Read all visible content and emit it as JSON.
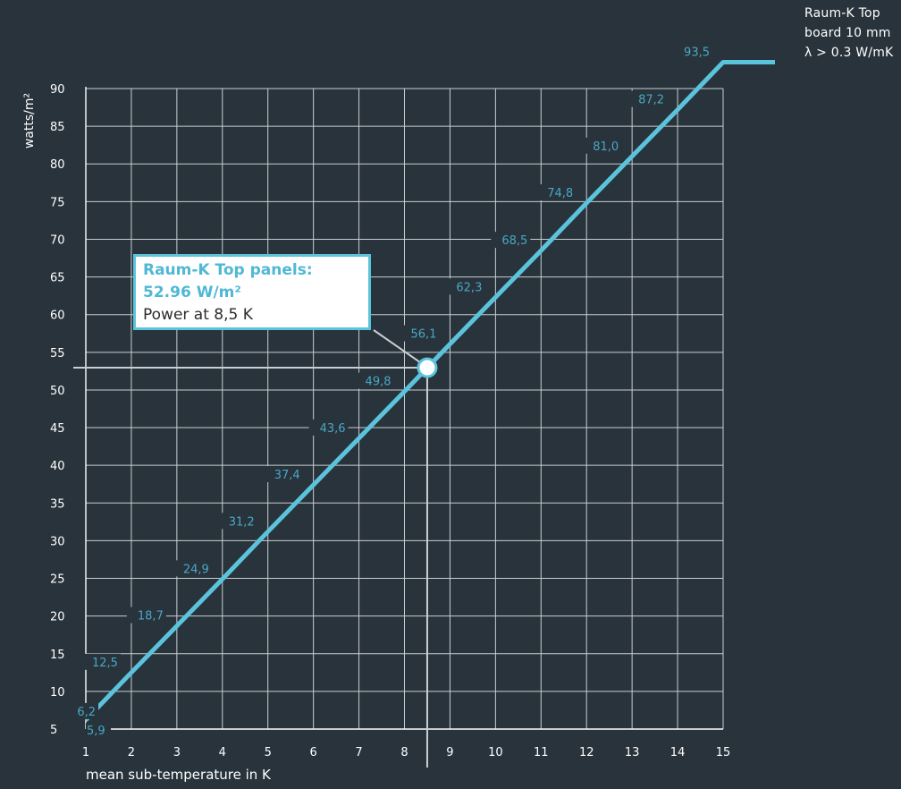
{
  "chart_data": {
    "type": "line",
    "ylabel": "watts/m²",
    "xlabel": "mean sub-temperature in K",
    "x_ticks": [
      "1",
      "2",
      "3",
      "4",
      "5",
      "6",
      "7",
      "8",
      "9",
      "10",
      "11",
      "12",
      "13",
      "14",
      "15"
    ],
    "y_ticks": [
      "5",
      "10",
      "15",
      "20",
      "25",
      "30",
      "35",
      "40",
      "45",
      "50",
      "55",
      "60",
      "65",
      "70",
      "75",
      "80",
      "85",
      "90"
    ],
    "xlim": [
      1,
      15
    ],
    "ylim": [
      5,
      90
    ],
    "grid": true,
    "series": [
      {
        "name": "Raum-K Top board 10 mm λ > 0.3 W/mK",
        "color": "#5bc3dc",
        "x": [
          1,
          2,
          3,
          4,
          5,
          6,
          7,
          8,
          9,
          10,
          11,
          12,
          13,
          14,
          15
        ],
        "y": [
          6.2,
          12.5,
          18.7,
          24.9,
          31.2,
          37.4,
          43.6,
          49.8,
          56.1,
          62.3,
          68.5,
          74.8,
          81.0,
          87.2,
          93.5
        ],
        "labels": [
          "6,2",
          "12,5",
          "18,7",
          "24,9",
          "31,2",
          "37,4",
          "43,6",
          "49,8",
          "56,1",
          "62,3",
          "68,5",
          "74,8",
          "81,0",
          "87,2",
          "93,5"
        ]
      }
    ],
    "extra_label": "5,9",
    "highlight": {
      "x": 8.5,
      "y": 52.96
    }
  },
  "legend": {
    "line1": "Raum-K Top",
    "line2": "board 10 mm",
    "line3": "λ > 0.3 W/mK"
  },
  "callout": {
    "title": "Raum-K Top panels:",
    "value": "52.96 W/m²",
    "note": "Power at 8,5 K"
  },
  "colors": {
    "background": "#28333b",
    "line": "#5bc3dc",
    "grid": "#c9cfd3",
    "data_label": "#4aa7c6"
  }
}
